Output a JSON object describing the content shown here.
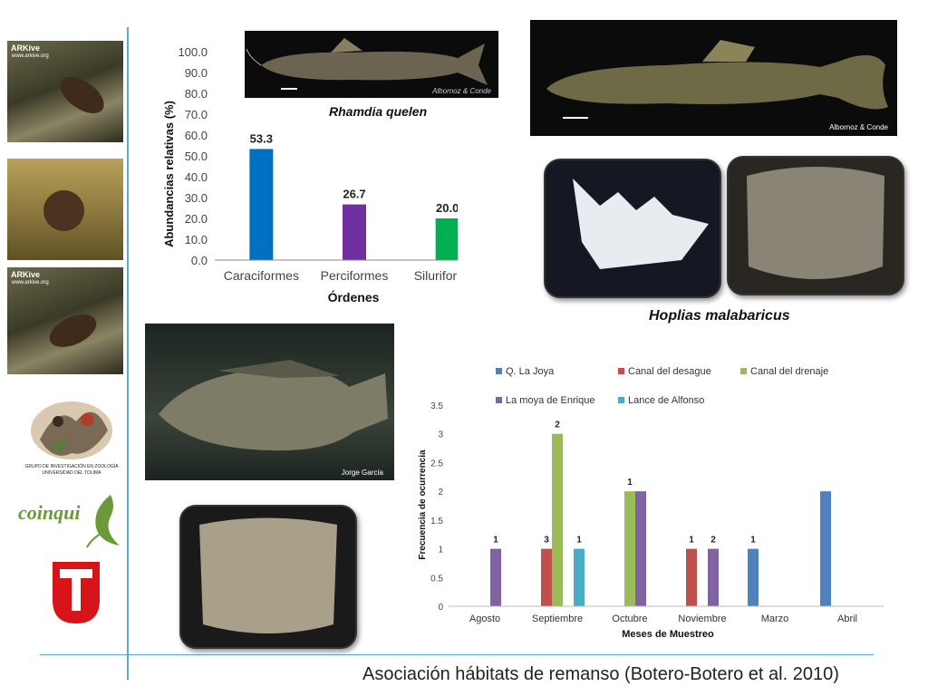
{
  "footer": "Asociación hábitats de remanso (Botero-Botero et al. 2010)",
  "photos": {
    "arkive1": "ARKive",
    "arkive1_sub": "www.arkive.org",
    "arkive3": "ARKive",
    "arkive3_sub": "www.arkive.org",
    "rhamdia_credit": "Albornoz & Conde",
    "top_right_credit": "Albornoz & Conde",
    "tilapia_credit": "Jorge García"
  },
  "logos": {
    "grupo_line1": "GRUPO DE INVESTIGACIÓN EN ZOOLOGÍA",
    "grupo_line2": "UNIVERSIDAD DEL TOLIMA",
    "coinqui": "coinqui"
  },
  "captions": {
    "rhamdia": "Rhamdia quelen",
    "hoplias": "Hoplias  malabaricus"
  },
  "chart_data": [
    {
      "type": "bar",
      "categories": [
        "Caraciformes",
        "Perciformes",
        "Siluriformes"
      ],
      "values": [
        53.3,
        26.7,
        20.0
      ],
      "value_labels": [
        "53.3",
        "26.7",
        "20.0"
      ],
      "colors": [
        "#0070c0",
        "#7030a0",
        "#00b050"
      ],
      "xlabel": "Órdenes",
      "ylabel": "Abundancias relativas (%)",
      "ylim": [
        0,
        100
      ],
      "yticks": [
        "0.0",
        "10.0",
        "20.0",
        "30.0",
        "40.0",
        "50.0",
        "60.0",
        "70.0",
        "80.0",
        "90.0",
        "100.0"
      ],
      "grid": false
    },
    {
      "type": "bar",
      "categories": [
        "Agosto",
        "Septiembre",
        "Octubre",
        "Noviembre",
        "Marzo",
        "Abril"
      ],
      "series": [
        {
          "name": "Q. La Joya",
          "color": "#4f81bd",
          "values": [
            0,
            0,
            0,
            0,
            1,
            2
          ]
        },
        {
          "name": "Canal del desague",
          "color": "#c0504d",
          "values": [
            0,
            1,
            0,
            1,
            0,
            0
          ]
        },
        {
          "name": "Canal del drenaje",
          "color": "#9bbb59",
          "values": [
            0,
            3,
            2,
            0,
            0,
            0
          ]
        },
        {
          "name": "La moya de Enrique",
          "color": "#8064a2",
          "values": [
            1,
            0,
            2,
            1,
            0,
            0
          ]
        },
        {
          "name": "Lance de Alfonso",
          "color": "#4bacc6",
          "values": [
            0,
            1,
            0,
            0,
            0,
            0
          ]
        }
      ],
      "top_labels": [
        "1",
        "3",
        "2",
        "1",
        "1",
        "1",
        "2",
        "1"
      ],
      "xlabel": "Meses de Muestreo",
      "ylabel": "Frecuencia de ocurrencia",
      "ylim": [
        0,
        3.5
      ],
      "yticks": [
        "0",
        "0.5",
        "1",
        "1.5",
        "2",
        "2.5",
        "3",
        "3.5"
      ],
      "legend_position": "top",
      "grid": false
    }
  ]
}
